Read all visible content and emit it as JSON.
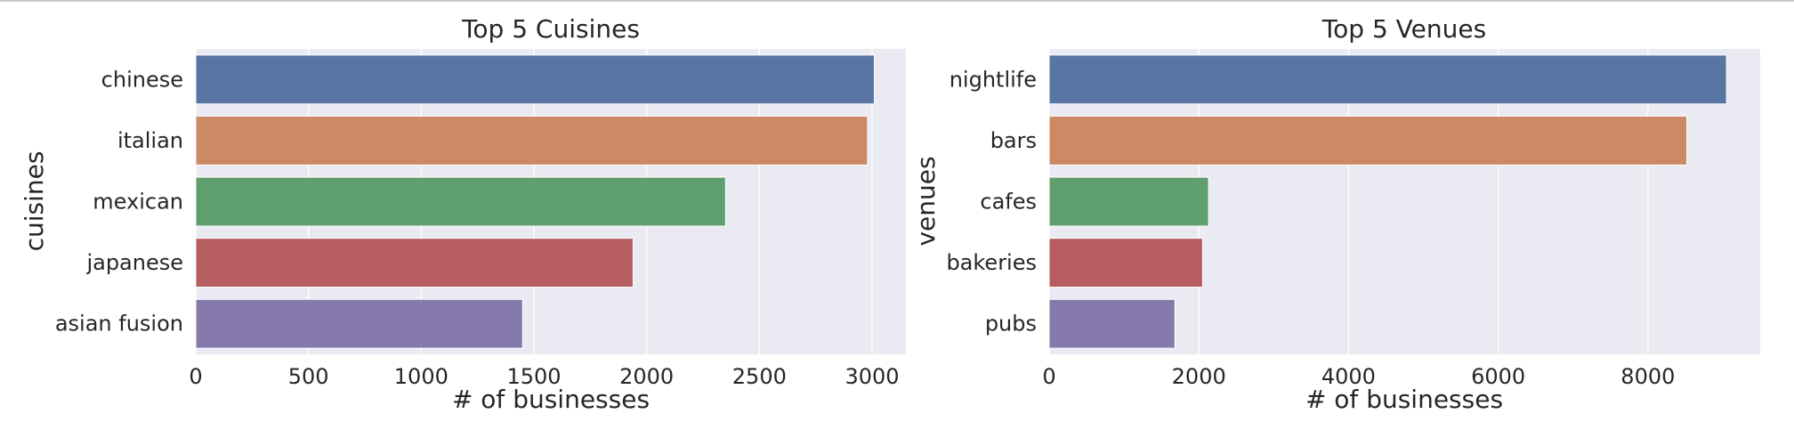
{
  "chart_data": [
    {
      "type": "bar",
      "orientation": "horizontal",
      "title": "Top 5 Cuisines",
      "xlabel": "# of businesses",
      "ylabel": "cuisines",
      "categories": [
        "chinese",
        "italian",
        "mexican",
        "japanese",
        "asian fusion"
      ],
      "values": [
        3010,
        2980,
        2350,
        1940,
        1450
      ],
      "xlim": [
        0,
        3150
      ],
      "xticks": [
        0,
        500,
        1000,
        1500,
        2000,
        2500,
        3000
      ],
      "colors": [
        "#5975a4",
        "#cc8963",
        "#5f9e6e",
        "#b55d60",
        "#857aab"
      ],
      "grid": true
    },
    {
      "type": "bar",
      "orientation": "horizontal",
      "title": "Top 5 Venues",
      "xlabel": "# of businesses",
      "ylabel": "venues",
      "categories": [
        "nightlife",
        "bars",
        "cafes",
        "bakeries",
        "pubs"
      ],
      "values": [
        9050,
        8520,
        2130,
        2050,
        1680
      ],
      "xlim": [
        0,
        9500
      ],
      "xticks": [
        0,
        2000,
        4000,
        6000,
        8000
      ],
      "colors": [
        "#5975a4",
        "#cc8963",
        "#5f9e6e",
        "#b55d60",
        "#857aab"
      ],
      "grid": true
    }
  ],
  "style": {
    "plot_background": "#eaeaf2",
    "grid_color": "#ffffff",
    "text_color": "#262626"
  }
}
